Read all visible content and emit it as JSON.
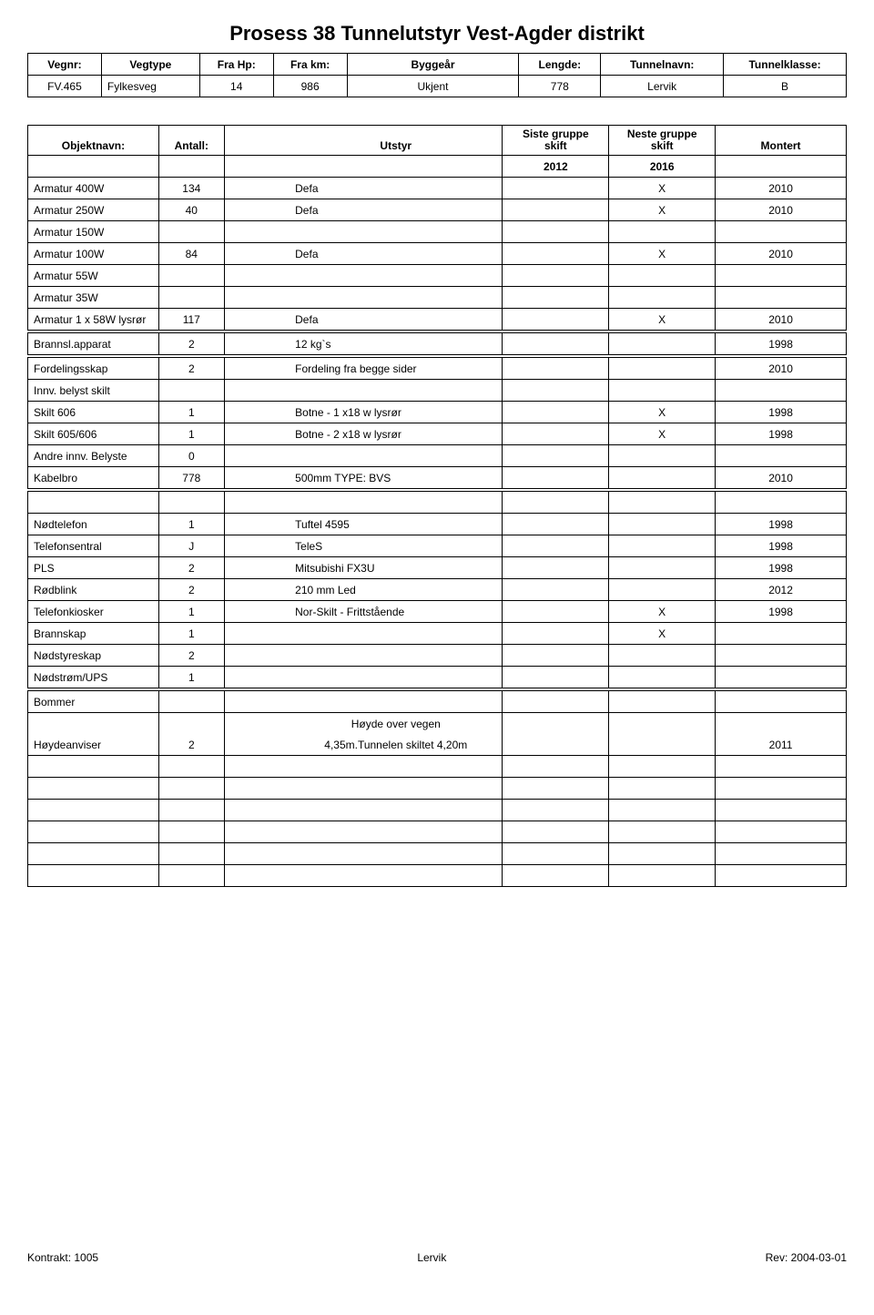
{
  "title": "Prosess 38 Tunnelutstyr Vest-Agder distrikt",
  "header1": {
    "labels": [
      "Vegnr:",
      "Vegtype",
      "Fra Hp:",
      "Fra km:",
      "Byggeår",
      "Lengde:",
      "Tunnelnavn:",
      "Tunnelklasse:"
    ],
    "values": [
      "FV.465",
      "Fylkesveg",
      "14",
      "986",
      "Ukjent",
      "778",
      "Lervik",
      "B"
    ]
  },
  "header2": {
    "labels": {
      "objektnavn": "Objektnavn:",
      "antall": "Antall:",
      "utstyr": "Utstyr",
      "siste": "Siste gruppe skift",
      "neste": "Neste gruppe skift",
      "montert": "Montert"
    },
    "years": {
      "siste": "2012",
      "neste": "2016"
    }
  },
  "sections": [
    {
      "rows": [
        {
          "c": [
            "Armatur 400W",
            "134",
            "",
            "Defa",
            "",
            "X",
            "2010"
          ]
        },
        {
          "c": [
            "Armatur 250W",
            "40",
            "",
            "Defa",
            "",
            "X",
            "2010"
          ]
        },
        {
          "c": [
            "Armatur 150W",
            "",
            "",
            "",
            "",
            "",
            ""
          ]
        },
        {
          "c": [
            "Armatur 100W",
            "84",
            "",
            "Defa",
            "",
            "X",
            "2010"
          ]
        },
        {
          "c": [
            "Armatur 55W",
            "",
            "",
            "",
            "",
            "",
            ""
          ]
        },
        {
          "c": [
            "Armatur 35W",
            "",
            "",
            "",
            "",
            "",
            ""
          ]
        },
        {
          "c": [
            "Armatur 1 x 58W lysrør",
            "117",
            "",
            "Defa",
            "",
            "X",
            "2010"
          ]
        }
      ]
    },
    {
      "rows": [
        {
          "c": [
            "Brannsl.apparat",
            "2",
            "",
            "12 kg`s",
            "",
            "",
            "1998"
          ]
        }
      ]
    },
    {
      "rows": [
        {
          "c": [
            "Fordelingsskap",
            "2",
            "",
            "Fordeling fra begge sider",
            "",
            "",
            "2010"
          ]
        },
        {
          "c": [
            "Innv. belyst skilt",
            "",
            "",
            "",
            "",
            "",
            ""
          ]
        },
        {
          "c": [
            "Skilt 606",
            "1",
            "",
            "Botne - 1 x18 w lysrør",
            "",
            "X",
            "1998"
          ]
        },
        {
          "c": [
            "Skilt 605/606",
            "1",
            "",
            "Botne - 2 x18 w lysrør",
            "",
            "X",
            "1998"
          ]
        },
        {
          "c": [
            "Andre innv. Belyste",
            "0",
            "",
            "",
            "",
            "",
            ""
          ]
        },
        {
          "c": [
            "Kabelbro",
            "778",
            "",
            "500mm   TYPE: BVS",
            "",
            "",
            "2010"
          ]
        }
      ]
    },
    {
      "rows": [
        {
          "c": [
            "",
            "",
            "",
            "",
            "",
            "",
            ""
          ]
        },
        {
          "c": [
            "Nødtelefon",
            "1",
            "",
            "Tuftel 4595",
            "",
            "",
            "1998"
          ]
        },
        {
          "c": [
            "Telefonsentral",
            "J",
            "",
            "TeleS",
            "",
            "",
            "1998"
          ]
        },
        {
          "c": [
            "PLS",
            "2",
            "",
            "Mitsubishi FX3U",
            "",
            "",
            "1998"
          ]
        },
        {
          "c": [
            "Rødblink",
            "2",
            "",
            "210 mm Led",
            "",
            "",
            "2012"
          ]
        },
        {
          "c": [
            "Telefonkiosker",
            "1",
            "",
            "Nor-Skilt - Frittstående",
            "",
            "X",
            "1998"
          ]
        },
        {
          "c": [
            "Brannskap",
            "1",
            "",
            "",
            "",
            "X",
            ""
          ]
        },
        {
          "c": [
            "Nødstyreskap",
            "2",
            "",
            "",
            "",
            "",
            ""
          ]
        },
        {
          "c": [
            "Nødstrøm/UPS",
            "1",
            "",
            "",
            "",
            "",
            ""
          ]
        }
      ]
    },
    {
      "rows": [
        {
          "c": [
            "Bommer",
            "",
            "",
            "",
            "",
            "",
            ""
          ]
        },
        {
          "c": [
            "",
            "",
            "",
            "Høyde over vegen",
            "",
            "",
            ""
          ],
          "tallNext": true
        },
        {
          "c": [
            "Høydeanviser",
            "2",
            "",
            "4,35m.Tunnelen skiltet 4,20m",
            "",
            "",
            "2011"
          ]
        },
        {
          "c": [
            "",
            "",
            "",
            "",
            "",
            "",
            ""
          ]
        },
        {
          "c": [
            "",
            "",
            "",
            "",
            "",
            "",
            ""
          ]
        },
        {
          "c": [
            "",
            "",
            "",
            "",
            "",
            "",
            ""
          ]
        },
        {
          "c": [
            "",
            "",
            "",
            "",
            "",
            "",
            ""
          ]
        },
        {
          "c": [
            "",
            "",
            "",
            "",
            "",
            "",
            ""
          ]
        },
        {
          "c": [
            "",
            "",
            "",
            "",
            "",
            "",
            ""
          ]
        }
      ]
    }
  ],
  "footer": {
    "left": "Kontrakt: 1005",
    "center": "Lervik",
    "right": "Rev: 2004-03-01"
  }
}
